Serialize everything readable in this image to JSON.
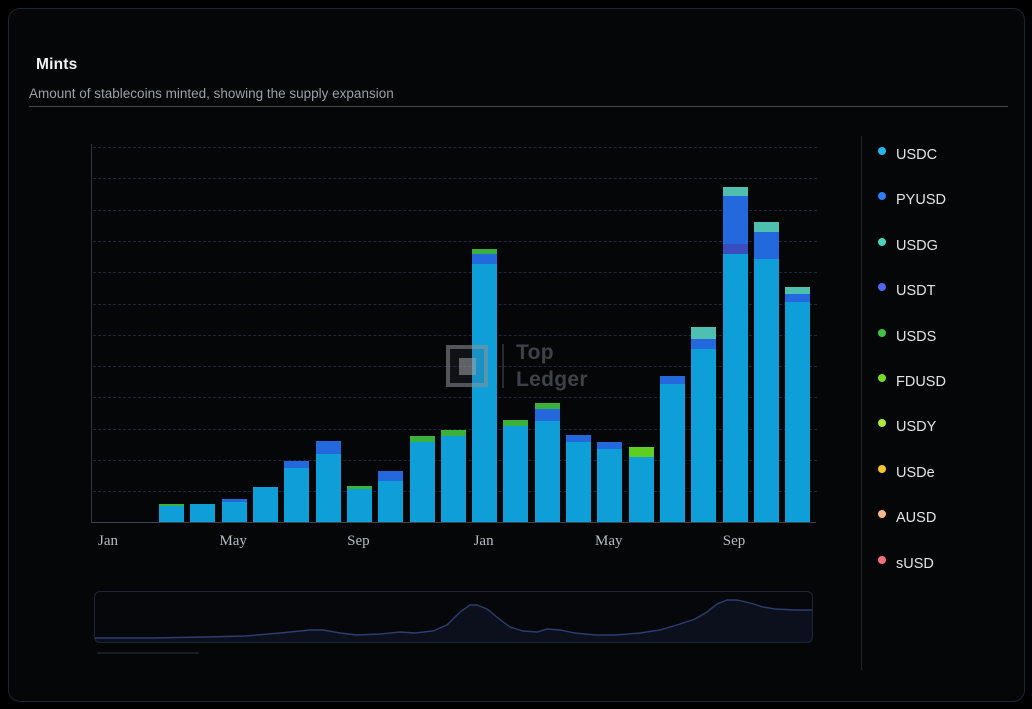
{
  "card": {
    "title": "Mints",
    "subtitle": "Amount of stablecoins minted, showing the supply expansion"
  },
  "watermark": {
    "line1": "Top",
    "line2": "Ledger"
  },
  "legend": {
    "items": [
      {
        "label": "USDC",
        "color": "#25b6f0"
      },
      {
        "label": "PYUSD",
        "color": "#2e7ef5"
      },
      {
        "label": "USDG",
        "color": "#4ad2ba"
      },
      {
        "label": "USDT",
        "color": "#4f66ef"
      },
      {
        "label": "USDS",
        "color": "#3ec43e"
      },
      {
        "label": "FDUSD",
        "color": "#74de25"
      },
      {
        "label": "USDY",
        "color": "#abe93c"
      },
      {
        "label": "USDe",
        "color": "#f7c62b"
      },
      {
        "label": "AUSD",
        "color": "#f7b78c"
      },
      {
        "label": "sUSD",
        "color": "#f2707c"
      }
    ]
  },
  "colors": {
    "bar": {
      "USDC": "#0f9fd8",
      "PYUSD": "#2368dd",
      "USDT": "#3a4dbf",
      "USDG": "#4fc0af",
      "USDS": "#3bb13b",
      "FDUSD": "#5ecf1e"
    },
    "accent_line": "#2c3e6e"
  },
  "chart_data": {
    "type": "bar",
    "stacked": true,
    "title": "Mints",
    "xlabel": "",
    "ylabel": "",
    "legend_position": "right",
    "grid": "horizontal dashed, 12 unlabeled levels",
    "y_axis_labels": "none visible; values below are relative units estimated from pixel heights (1 gridline ≈ 31.3 units)",
    "x_tick_labels": [
      "Jan",
      "May",
      "Sep",
      "Jan",
      "May",
      "Sep"
    ],
    "x_ticks": [
      {
        "index": 0,
        "label": "Jan"
      },
      {
        "index": 4,
        "label": "May"
      },
      {
        "index": 8,
        "label": "Sep"
      },
      {
        "index": 12,
        "label": "Jan"
      },
      {
        "index": 16,
        "label": "May"
      },
      {
        "index": 20,
        "label": "Sep"
      }
    ],
    "bars": [
      {
        "month": "2024-01",
        "segments": []
      },
      {
        "month": "2024-02",
        "segments": []
      },
      {
        "month": "2024-03",
        "segments": [
          {
            "coin": "USDC",
            "value": 16
          },
          {
            "coin": "USDS",
            "value": 2
          }
        ]
      },
      {
        "month": "2024-04",
        "segments": [
          {
            "coin": "USDC",
            "value": 18
          }
        ]
      },
      {
        "month": "2024-05",
        "segments": [
          {
            "coin": "USDC",
            "value": 20
          },
          {
            "coin": "PYUSD",
            "value": 3
          }
        ]
      },
      {
        "month": "2024-06",
        "segments": [
          {
            "coin": "USDC",
            "value": 35
          }
        ]
      },
      {
        "month": "2024-07",
        "segments": [
          {
            "coin": "USDC",
            "value": 54
          },
          {
            "coin": "PYUSD",
            "value": 7
          }
        ]
      },
      {
        "month": "2024-08",
        "segments": [
          {
            "coin": "USDC",
            "value": 68
          },
          {
            "coin": "PYUSD",
            "value": 13
          }
        ]
      },
      {
        "month": "2024-09",
        "segments": [
          {
            "coin": "USDC",
            "value": 33
          },
          {
            "coin": "USDS",
            "value": 3
          }
        ]
      },
      {
        "month": "2024-10",
        "segments": [
          {
            "coin": "USDC",
            "value": 41
          },
          {
            "coin": "PYUSD",
            "value": 10
          }
        ]
      },
      {
        "month": "2024-11",
        "segments": [
          {
            "coin": "USDC",
            "value": 80
          },
          {
            "coin": "USDS",
            "value": 6
          }
        ]
      },
      {
        "month": "2024-12",
        "segments": [
          {
            "coin": "USDC",
            "value": 86
          },
          {
            "coin": "USDS",
            "value": 6
          }
        ]
      },
      {
        "month": "2025-01",
        "segments": [
          {
            "coin": "USDC",
            "value": 258
          },
          {
            "coin": "PYUSD",
            "value": 10
          },
          {
            "coin": "USDS",
            "value": 5
          }
        ]
      },
      {
        "month": "2025-02",
        "segments": [
          {
            "coin": "USDC",
            "value": 96
          },
          {
            "coin": "USDS",
            "value": 6
          }
        ]
      },
      {
        "month": "2025-03",
        "segments": [
          {
            "coin": "USDC",
            "value": 101
          },
          {
            "coin": "PYUSD",
            "value": 12
          },
          {
            "coin": "USDS",
            "value": 6
          }
        ]
      },
      {
        "month": "2025-04",
        "segments": [
          {
            "coin": "USDC",
            "value": 80
          },
          {
            "coin": "PYUSD",
            "value": 7
          }
        ]
      },
      {
        "month": "2025-05",
        "segments": [
          {
            "coin": "USDC",
            "value": 73
          },
          {
            "coin": "PYUSD",
            "value": 7
          }
        ]
      },
      {
        "month": "2025-06",
        "segments": [
          {
            "coin": "USDC",
            "value": 65
          },
          {
            "coin": "FDUSD",
            "value": 10
          }
        ]
      },
      {
        "month": "2025-07",
        "segments": [
          {
            "coin": "USDC",
            "value": 138
          },
          {
            "coin": "PYUSD",
            "value": 8
          }
        ]
      },
      {
        "month": "2025-08",
        "segments": [
          {
            "coin": "USDC",
            "value": 173
          },
          {
            "coin": "PYUSD",
            "value": 10
          },
          {
            "coin": "USDG",
            "value": 12
          }
        ]
      },
      {
        "month": "2025-09",
        "segments": [
          {
            "coin": "USDC",
            "value": 268
          },
          {
            "coin": "USDT",
            "value": 10
          },
          {
            "coin": "PYUSD",
            "value": 48
          },
          {
            "coin": "USDG",
            "value": 9
          }
        ]
      },
      {
        "month": "2025-10",
        "segments": [
          {
            "coin": "USDC",
            "value": 263
          },
          {
            "coin": "PYUSD",
            "value": 27
          },
          {
            "coin": "USDG",
            "value": 10
          }
        ]
      },
      {
        "month": "2025-11",
        "segments": [
          {
            "coin": "USDC",
            "value": 220
          },
          {
            "coin": "PYUSD",
            "value": 8
          },
          {
            "coin": "USDG",
            "value": 7
          }
        ]
      }
    ],
    "navigator_line": [
      [
        0,
        46
      ],
      [
        55,
        46
      ],
      [
        110,
        45
      ],
      [
        150,
        44
      ],
      [
        185,
        41
      ],
      [
        215,
        38
      ],
      [
        228,
        38
      ],
      [
        245,
        41
      ],
      [
        262,
        43
      ],
      [
        285,
        42
      ],
      [
        305,
        40
      ],
      [
        320,
        41
      ],
      [
        338,
        39
      ],
      [
        352,
        33
      ],
      [
        365,
        20
      ],
      [
        375,
        13
      ],
      [
        382,
        13
      ],
      [
        392,
        17
      ],
      [
        403,
        26
      ],
      [
        415,
        35
      ],
      [
        428,
        39
      ],
      [
        442,
        40
      ],
      [
        452,
        37
      ],
      [
        465,
        38
      ],
      [
        480,
        41
      ],
      [
        500,
        43
      ],
      [
        520,
        43
      ],
      [
        545,
        41
      ],
      [
        565,
        38
      ],
      [
        585,
        32
      ],
      [
        600,
        27
      ],
      [
        612,
        20
      ],
      [
        622,
        12
      ],
      [
        632,
        8
      ],
      [
        642,
        8
      ],
      [
        655,
        11
      ],
      [
        668,
        15
      ],
      [
        680,
        17
      ],
      [
        700,
        18
      ],
      [
        717,
        18
      ]
    ]
  }
}
